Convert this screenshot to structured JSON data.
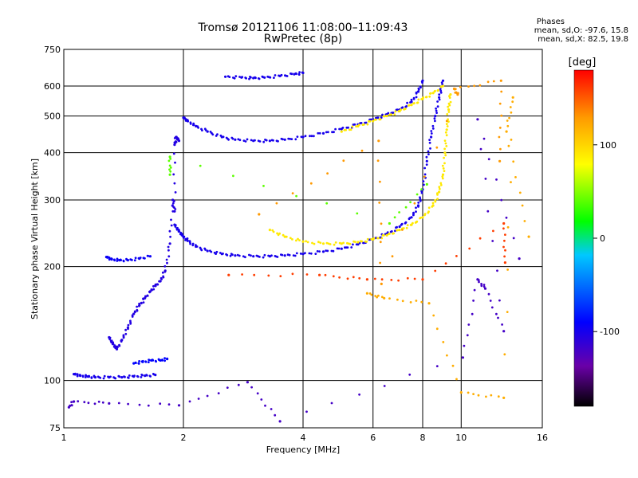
{
  "header": {
    "title_line1": "Tromsø 20121106 11:08:00–11:09:43",
    "title_line2": "RwPretec (8p)",
    "phases_heading": "Phases",
    "phases_o": "mean, sd,O: -97.6, 15.8",
    "phases_x": "mean, sd,X: 82.5, 19.8"
  },
  "chart_data": {
    "type": "scatter",
    "title": "Tromsø 20121106 11:08:00–11:09:43",
    "subtitle": "RwPretec (8p)",
    "xlabel": "Frequency [MHz]",
    "ylabel": "Stationary phase Virtual Height [km]",
    "xscale": "log",
    "yscale": "log",
    "xlim": [
      1,
      16
    ],
    "ylim": [
      75,
      750
    ],
    "x_ticks": [
      1,
      2,
      4,
      6,
      8,
      10,
      16
    ],
    "y_ticks": [
      75,
      100,
      200,
      300,
      400,
      500,
      600,
      750
    ],
    "grid": true,
    "colorbar": {
      "label": "[deg]",
      "range": [
        -180,
        180
      ],
      "ticks": [
        100,
        0,
        -100
      ],
      "colors": [
        "#000000",
        "#6a00a8",
        "#0000ff",
        "#00c8ff",
        "#00ff00",
        "#ffff00",
        "#ff9900",
        "#ff0000"
      ]
    },
    "traces": [
      {
        "phase": -100,
        "points": [
          [
            1.06,
            104
          ],
          [
            1.1,
            103
          ],
          [
            1.15,
            102.5
          ],
          [
            1.2,
            102
          ],
          [
            1.3,
            102
          ],
          [
            1.4,
            102
          ],
          [
            1.5,
            102.5
          ],
          [
            1.6,
            103
          ],
          [
            1.7,
            103.5
          ]
        ]
      },
      {
        "phase": -95,
        "points": [
          [
            1.28,
            212
          ],
          [
            1.32,
            209
          ],
          [
            1.38,
            208
          ],
          [
            1.45,
            208
          ],
          [
            1.55,
            210
          ],
          [
            1.65,
            213
          ]
        ]
      },
      {
        "phase": -105,
        "points": [
          [
            1.3,
            130
          ],
          [
            1.33,
            125
          ],
          [
            1.36,
            121
          ],
          [
            1.4,
            128
          ],
          [
            1.45,
            138
          ],
          [
            1.5,
            150
          ],
          [
            1.55,
            158
          ],
          [
            1.6,
            165
          ],
          [
            1.65,
            172
          ],
          [
            1.7,
            178
          ],
          [
            1.75,
            183
          ],
          [
            1.8,
            195
          ],
          [
            1.85,
            230
          ],
          [
            1.88,
            300
          ],
          [
            1.9,
            280
          ],
          [
            1.9,
            420
          ],
          [
            1.92,
            440
          ],
          [
            1.95,
            430
          ]
        ]
      },
      {
        "phase": -90,
        "points": [
          [
            1.5,
            111
          ],
          [
            1.58,
            112
          ],
          [
            1.66,
            113
          ],
          [
            1.75,
            113
          ],
          [
            1.82,
            114
          ]
        ]
      },
      {
        "phase": -100,
        "points": [
          [
            1.9,
            258
          ],
          [
            1.95,
            248
          ],
          [
            2.0,
            240
          ],
          [
            2.05,
            234
          ],
          [
            2.15,
            226
          ],
          [
            2.3,
            220
          ],
          [
            2.5,
            216
          ],
          [
            2.7,
            214
          ],
          [
            3.0,
            213
          ],
          [
            3.3,
            213
          ],
          [
            3.6,
            214
          ],
          [
            4.0,
            216
          ],
          [
            4.5,
            219
          ],
          [
            5.0,
            223
          ],
          [
            5.5,
            229
          ],
          [
            6.0,
            236
          ],
          [
            6.5,
            244
          ],
          [
            7.0,
            255
          ],
          [
            7.5,
            270
          ],
          [
            7.8,
            290
          ],
          [
            8.0,
            320
          ],
          [
            8.2,
            380
          ],
          [
            8.4,
            440
          ],
          [
            8.6,
            500
          ],
          [
            8.8,
            560
          ],
          [
            9.0,
            620
          ]
        ]
      },
      {
        "phase": -100,
        "points": [
          [
            2.0,
            495
          ],
          [
            2.05,
            485
          ],
          [
            2.15,
            470
          ],
          [
            2.3,
            455
          ],
          [
            2.5,
            440
          ],
          [
            2.7,
            433
          ],
          [
            3.0,
            430
          ],
          [
            3.3,
            430
          ],
          [
            3.6,
            433
          ],
          [
            4.0,
            440
          ],
          [
            4.5,
            450
          ],
          [
            5.0,
            462
          ],
          [
            5.5,
            475
          ],
          [
            6.0,
            490
          ],
          [
            6.5,
            505
          ],
          [
            7.0,
            520
          ],
          [
            7.5,
            545
          ],
          [
            7.8,
            580
          ],
          [
            8.0,
            620
          ]
        ]
      },
      {
        "phase": -100,
        "points": [
          [
            2.55,
            635
          ],
          [
            2.8,
            632
          ],
          [
            3.0,
            630
          ],
          [
            3.2,
            632
          ],
          [
            3.5,
            638
          ],
          [
            3.8,
            645
          ],
          [
            4.0,
            650
          ]
        ]
      },
      {
        "phase": 90,
        "points": [
          [
            3.3,
            250
          ],
          [
            3.6,
            240
          ],
          [
            4.0,
            233
          ],
          [
            4.5,
            230
          ],
          [
            5.0,
            230
          ],
          [
            5.5,
            232
          ],
          [
            6.0,
            236
          ],
          [
            6.5,
            242
          ],
          [
            7.0,
            250
          ],
          [
            7.5,
            258
          ],
          [
            8.0,
            270
          ],
          [
            8.5,
            290
          ],
          [
            8.8,
            315
          ],
          [
            9.0,
            350
          ],
          [
            9.1,
            400
          ],
          [
            9.2,
            460
          ],
          [
            9.3,
            520
          ],
          [
            9.4,
            570
          ]
        ]
      },
      {
        "phase": 90,
        "points": [
          [
            5.0,
            455
          ],
          [
            5.5,
            470
          ],
          [
            6.0,
            485
          ],
          [
            6.5,
            500
          ],
          [
            7.0,
            515
          ],
          [
            7.5,
            535
          ],
          [
            8.0,
            555
          ],
          [
            8.5,
            575
          ],
          [
            9.0,
            600
          ]
        ]
      },
      {
        "phase": 40,
        "points": [
          [
            1.85,
            350
          ],
          [
            1.85,
            390
          ],
          [
            6.6,
            260
          ],
          [
            8.2,
            330
          ]
        ]
      },
      {
        "phase": 130,
        "points": [
          [
            3.1,
            275
          ],
          [
            6.2,
            430
          ],
          [
            6.3,
            180
          ],
          [
            9.8,
            570
          ],
          [
            9.6,
            590
          ],
          [
            12.6,
            620
          ],
          [
            12.5,
            380
          ]
        ]
      },
      {
        "phase": 160,
        "points": [
          [
            2.6,
            190
          ],
          [
            4.4,
            190
          ],
          [
            5.8,
            185
          ],
          [
            8.0,
            185
          ],
          [
            12.8,
            260
          ],
          [
            12.9,
            205
          ]
        ]
      },
      {
        "phase": -120,
        "points": [
          [
            1.03,
            85
          ],
          [
            1.06,
            88
          ],
          [
            1.3,
            87
          ],
          [
            1.95,
            86
          ],
          [
            2.9,
            99
          ],
          [
            3.5,
            78
          ],
          [
            10.1,
            115
          ],
          [
            11.0,
            185
          ],
          [
            11.5,
            175
          ],
          [
            12.8,
            135
          ],
          [
            11.0,
            490
          ],
          [
            14.0,
            210
          ]
        ]
      },
      {
        "phase": 120,
        "points": [
          [
            5.8,
            170
          ],
          [
            6.4,
            165
          ],
          [
            8.3,
            160
          ],
          [
            10.0,
            93
          ],
          [
            12.8,
            90
          ],
          [
            13.5,
            560
          ],
          [
            13.0,
            455
          ],
          [
            14.8,
            240
          ]
        ]
      }
    ]
  }
}
